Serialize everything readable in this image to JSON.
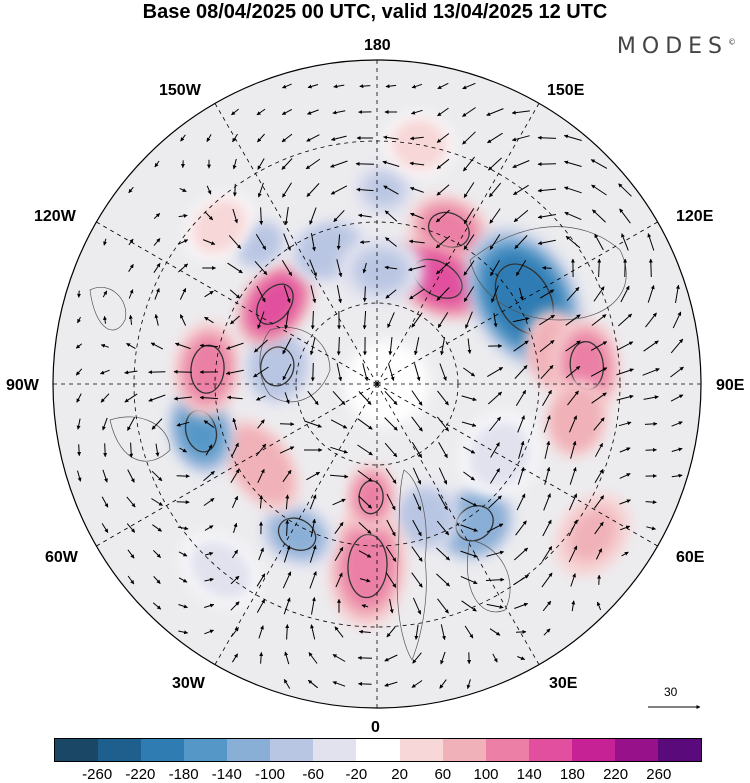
{
  "title": "Base 08/04/2025 00 UTC, valid 13/04/2025 12 UTC",
  "brand": "MODES",
  "brand_mark": "©",
  "longitude_labels": {
    "top": "180",
    "bottom": "0",
    "left": "90W",
    "right": "90E",
    "upper_left_outer": "150W",
    "upper_left_inner": "120W",
    "upper_right_outer": "150E",
    "upper_right_inner": "120E",
    "lower_left_inner": "60W",
    "lower_left_outer": "30W",
    "lower_right_inner": "60E",
    "lower_right_outer": "30E"
  },
  "vector_scale_label": "30",
  "colorbar": {
    "colors": [
      "#1b4766",
      "#1f5f8e",
      "#2f7cb3",
      "#5598c8",
      "#8aafd6",
      "#b9c6e3",
      "#e2e2ef",
      "#ffffff",
      "#f7d7d8",
      "#f0b1b8",
      "#eb7fa5",
      "#e14f9e",
      "#c62296",
      "#96118a",
      "#5a0a7a"
    ],
    "labels": [
      "-260",
      "-220",
      "-180",
      "-140",
      "-100",
      "-60",
      "-20",
      "20",
      "60",
      "100",
      "140",
      "180",
      "220",
      "260"
    ]
  },
  "anomalies": [
    {
      "lon": 178,
      "lat": 42,
      "rx": 20,
      "ry": 17,
      "value": -70
    },
    {
      "lon": 170,
      "lat": 30,
      "rx": 22,
      "ry": 20,
      "value": 40
    },
    {
      "lon": 155,
      "lat": 48,
      "rx": 28,
      "ry": 22,
      "value": 120
    },
    {
      "lon": 150,
      "lat": 60,
      "rx": 35,
      "ry": 22,
      "value": 150
    },
    {
      "lon": 120,
      "lat": 48,
      "rx": 50,
      "ry": 34,
      "value": -200
    },
    {
      "lon": 100,
      "lat": 45,
      "rx": 28,
      "ry": 20,
      "value": 90
    },
    {
      "lon": 95,
      "lat": 38,
      "rx": 32,
      "ry": 22,
      "value": 110
    },
    {
      "lon": 80,
      "lat": 40,
      "rx": 26,
      "ry": 20,
      "value": 80
    },
    {
      "lon": 55,
      "lat": 25,
      "rx": 30,
      "ry": 22,
      "value": 60
    },
    {
      "lon": 35,
      "lat": 48,
      "rx": 26,
      "ry": 22,
      "value": -140
    },
    {
      "lon": 20,
      "lat": 55,
      "rx": 22,
      "ry": 22,
      "value": -90
    },
    {
      "lon": -3,
      "lat": 45,
      "rx": 26,
      "ry": 42,
      "value": 120
    },
    {
      "lon": -3,
      "lat": 62,
      "rx": 16,
      "ry": 22,
      "value": 100
    },
    {
      "lon": -28,
      "lat": 48,
      "rx": 26,
      "ry": 20,
      "value": -120
    },
    {
      "lon": -55,
      "lat": 55,
      "rx": 35,
      "ry": 20,
      "value": 90
    },
    {
      "lon": -75,
      "lat": 45,
      "rx": 28,
      "ry": 20,
      "value": -180
    },
    {
      "lon": -95,
      "lat": 48,
      "rx": 32,
      "ry": 22,
      "value": 100
    },
    {
      "lon": -100,
      "lat": 65,
      "rx": 26,
      "ry": 22,
      "value": -100
    },
    {
      "lon": -128,
      "lat": 58,
      "rx": 30,
      "ry": 20,
      "value": 160
    },
    {
      "lon": -140,
      "lat": 45,
      "rx": 18,
      "ry": 14,
      "value": -90
    },
    {
      "lon": -160,
      "lat": 55,
      "rx": 26,
      "ry": 20,
      "value": -90
    },
    {
      "lon": 178,
      "lat": 62,
      "rx": 28,
      "ry": 22,
      "value": -80
    },
    {
      "lon": -135,
      "lat": 35,
      "rx": 24,
      "ry": 18,
      "value": 30
    },
    {
      "lon": 60,
      "lat": 55,
      "rx": 28,
      "ry": 24,
      "value": -30
    },
    {
      "lon": -40,
      "lat": 30,
      "rx": 28,
      "ry": 20,
      "value": -30
    }
  ]
}
